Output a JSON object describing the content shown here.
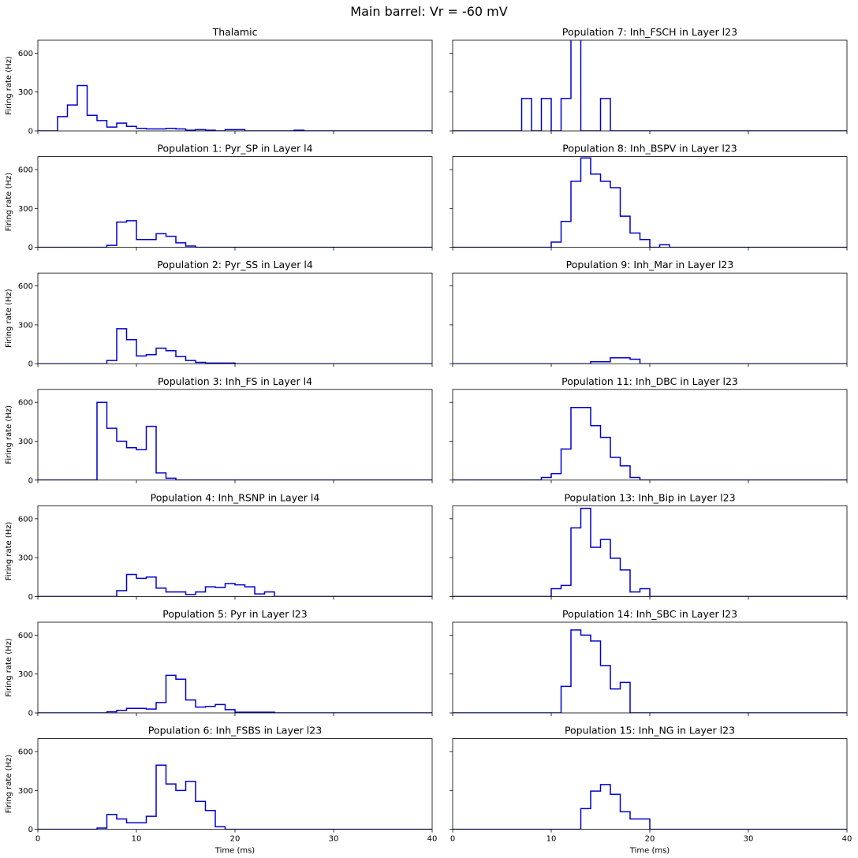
{
  "figure": {
    "title": "Main barrel: Vr = -60 mV",
    "series_color": "#0000cc"
  },
  "chart_data": [
    {
      "type": "line",
      "step": "post",
      "title": "Thalamic",
      "ylabel": "Firing rate (Hz)",
      "xlabel": "",
      "xlim": [
        0,
        40
      ],
      "ylim": [
        0,
        700
      ],
      "xticks": [
        "0",
        "10",
        "20",
        "30",
        "40"
      ],
      "yticks": [
        "0",
        "300",
        "600"
      ],
      "x": [
        0,
        1,
        2,
        3,
        4,
        5,
        6,
        7,
        8,
        9,
        10,
        11,
        12,
        13,
        14,
        15,
        16,
        17,
        18,
        19,
        20,
        21,
        22,
        23,
        24,
        25,
        26,
        27,
        28,
        29,
        30,
        31,
        32,
        33,
        34,
        35,
        36,
        37,
        38,
        39
      ],
      "y": [
        0,
        0,
        110,
        200,
        350,
        120,
        80,
        30,
        60,
        35,
        20,
        15,
        15,
        20,
        15,
        5,
        10,
        5,
        0,
        10,
        10,
        0,
        0,
        0,
        0,
        0,
        5,
        0,
        0,
        0,
        0,
        0,
        0,
        0,
        0,
        0,
        0,
        0,
        0,
        0
      ]
    },
    {
      "type": "line",
      "step": "post",
      "title": "Population 7: Inh_FSCH in Layer l23",
      "ylabel": "",
      "xlabel": "",
      "xlim": [
        0,
        40
      ],
      "ylim": [
        0,
        700
      ],
      "xticks": [
        "0",
        "10",
        "20",
        "30",
        "40"
      ],
      "yticks": [
        "0",
        "300",
        "600"
      ],
      "x": [
        0,
        1,
        2,
        3,
        4,
        5,
        6,
        7,
        8,
        9,
        10,
        11,
        12,
        13,
        14,
        15,
        16,
        17,
        18,
        19,
        20,
        21,
        22,
        23,
        24,
        25,
        26,
        27,
        28,
        29,
        30,
        31,
        32,
        33,
        34,
        35,
        36,
        37,
        38,
        39
      ],
      "y": [
        0,
        0,
        0,
        0,
        0,
        0,
        0,
        250,
        0,
        250,
        0,
        250,
        1000,
        0,
        0,
        250,
        0,
        0,
        0,
        0,
        0,
        0,
        0,
        0,
        0,
        0,
        0,
        0,
        0,
        0,
        0,
        0,
        0,
        0,
        0,
        0,
        0,
        0,
        0,
        0
      ]
    },
    {
      "type": "line",
      "step": "post",
      "title": "Population 1: Pyr_SP in Layer l4",
      "ylabel": "Firing rate (Hz)",
      "xlabel": "",
      "xlim": [
        0,
        40
      ],
      "ylim": [
        0,
        700
      ],
      "xticks": [
        "0",
        "10",
        "20",
        "30",
        "40"
      ],
      "yticks": [
        "0",
        "300",
        "600"
      ],
      "x": [
        0,
        1,
        2,
        3,
        4,
        5,
        6,
        7,
        8,
        9,
        10,
        11,
        12,
        13,
        14,
        15,
        16,
        17,
        18,
        19,
        20,
        21,
        22,
        23,
        24,
        25,
        26,
        27,
        28,
        29,
        30,
        31,
        32,
        33,
        34,
        35,
        36,
        37,
        38,
        39
      ],
      "y": [
        0,
        0,
        0,
        0,
        0,
        0,
        0,
        15,
        195,
        205,
        60,
        60,
        105,
        85,
        35,
        10,
        0,
        0,
        0,
        0,
        0,
        0,
        0,
        0,
        0,
        0,
        0,
        0,
        0,
        0,
        0,
        0,
        0,
        0,
        0,
        0,
        0,
        0,
        0,
        0
      ]
    },
    {
      "type": "line",
      "step": "post",
      "title": "Population 8: Inh_BSPV in Layer l23",
      "ylabel": "",
      "xlabel": "",
      "xlim": [
        0,
        40
      ],
      "ylim": [
        0,
        700
      ],
      "xticks": [
        "0",
        "10",
        "20",
        "30",
        "40"
      ],
      "yticks": [
        "0",
        "300",
        "600"
      ],
      "x": [
        0,
        1,
        2,
        3,
        4,
        5,
        6,
        7,
        8,
        9,
        10,
        11,
        12,
        13,
        14,
        15,
        16,
        17,
        18,
        19,
        20,
        21,
        22,
        23,
        24,
        25,
        26,
        27,
        28,
        29,
        30,
        31,
        32,
        33,
        34,
        35,
        36,
        37,
        38,
        39
      ],
      "y": [
        0,
        0,
        0,
        0,
        0,
        0,
        0,
        0,
        0,
        0,
        40,
        200,
        510,
        690,
        565,
        510,
        460,
        240,
        110,
        60,
        0,
        20,
        0,
        0,
        0,
        0,
        0,
        0,
        0,
        0,
        0,
        0,
        0,
        0,
        0,
        0,
        0,
        0,
        0,
        0
      ]
    },
    {
      "type": "line",
      "step": "post",
      "title": "Population 2: Pyr_SS in Layer l4",
      "ylabel": "Firing rate (Hz)",
      "xlabel": "",
      "xlim": [
        0,
        40
      ],
      "ylim": [
        0,
        700
      ],
      "xticks": [
        "0",
        "10",
        "20",
        "30",
        "40"
      ],
      "yticks": [
        "0",
        "300",
        "600"
      ],
      "x": [
        0,
        1,
        2,
        3,
        4,
        5,
        6,
        7,
        8,
        9,
        10,
        11,
        12,
        13,
        14,
        15,
        16,
        17,
        18,
        19,
        20,
        21,
        22,
        23,
        24,
        25,
        26,
        27,
        28,
        29,
        30,
        31,
        32,
        33,
        34,
        35,
        36,
        37,
        38,
        39
      ],
      "y": [
        0,
        0,
        0,
        0,
        0,
        0,
        0,
        25,
        270,
        185,
        60,
        70,
        120,
        100,
        55,
        25,
        10,
        5,
        5,
        5,
        0,
        0,
        0,
        0,
        0,
        0,
        0,
        0,
        0,
        0,
        0,
        0,
        0,
        0,
        0,
        0,
        0,
        0,
        0,
        0
      ]
    },
    {
      "type": "line",
      "step": "post",
      "title": "Population 9: Inh_Mar in Layer l23",
      "ylabel": "",
      "xlabel": "",
      "xlim": [
        0,
        40
      ],
      "ylim": [
        0,
        700
      ],
      "xticks": [
        "0",
        "10",
        "20",
        "30",
        "40"
      ],
      "yticks": [
        "0",
        "300",
        "600"
      ],
      "x": [
        0,
        1,
        2,
        3,
        4,
        5,
        6,
        7,
        8,
        9,
        10,
        11,
        12,
        13,
        14,
        15,
        16,
        17,
        18,
        19,
        20,
        21,
        22,
        23,
        24,
        25,
        26,
        27,
        28,
        29,
        30,
        31,
        32,
        33,
        34,
        35,
        36,
        37,
        38,
        39
      ],
      "y": [
        0,
        0,
        0,
        0,
        0,
        0,
        0,
        0,
        0,
        0,
        0,
        0,
        0,
        0,
        15,
        15,
        45,
        45,
        35,
        0,
        0,
        0,
        0,
        0,
        0,
        0,
        0,
        0,
        0,
        0,
        0,
        0,
        0,
        0,
        0,
        0,
        0,
        0,
        0,
        0
      ]
    },
    {
      "type": "line",
      "step": "post",
      "title": "Population 3: Inh_FS in Layer l4",
      "ylabel": "Firing rate (Hz)",
      "xlabel": "",
      "xlim": [
        0,
        40
      ],
      "ylim": [
        0,
        700
      ],
      "xticks": [
        "0",
        "10",
        "20",
        "30",
        "40"
      ],
      "yticks": [
        "0",
        "300",
        "600"
      ],
      "x": [
        0,
        1,
        2,
        3,
        4,
        5,
        6,
        7,
        8,
        9,
        10,
        11,
        12,
        13,
        14,
        15,
        16,
        17,
        18,
        19,
        20,
        21,
        22,
        23,
        24,
        25,
        26,
        27,
        28,
        29,
        30,
        31,
        32,
        33,
        34,
        35,
        36,
        37,
        38,
        39
      ],
      "y": [
        0,
        0,
        0,
        0,
        0,
        0,
        600,
        400,
        300,
        250,
        235,
        415,
        55,
        15,
        0,
        0,
        0,
        0,
        0,
        0,
        0,
        0,
        0,
        0,
        0,
        0,
        0,
        0,
        0,
        0,
        0,
        0,
        0,
        0,
        0,
        0,
        0,
        0,
        0,
        0
      ]
    },
    {
      "type": "line",
      "step": "post",
      "title": "Population 11: Inh_DBC in Layer l23",
      "ylabel": "",
      "xlabel": "",
      "xlim": [
        0,
        40
      ],
      "ylim": [
        0,
        700
      ],
      "xticks": [
        "0",
        "10",
        "20",
        "30",
        "40"
      ],
      "yticks": [
        "0",
        "300",
        "600"
      ],
      "x": [
        0,
        1,
        2,
        3,
        4,
        5,
        6,
        7,
        8,
        9,
        10,
        11,
        12,
        13,
        14,
        15,
        16,
        17,
        18,
        19,
        20,
        21,
        22,
        23,
        24,
        25,
        26,
        27,
        28,
        29,
        30,
        31,
        32,
        33,
        34,
        35,
        36,
        37,
        38,
        39
      ],
      "y": [
        0,
        0,
        0,
        0,
        0,
        0,
        0,
        0,
        0,
        20,
        50,
        240,
        560,
        560,
        420,
        330,
        175,
        110,
        20,
        0,
        0,
        0,
        0,
        0,
        0,
        0,
        0,
        0,
        0,
        0,
        0,
        0,
        0,
        0,
        0,
        0,
        0,
        0,
        0,
        0
      ]
    },
    {
      "type": "line",
      "step": "post",
      "title": "Population 4: Inh_RSNP in Layer l4",
      "ylabel": "Firing rate (Hz)",
      "xlabel": "",
      "xlim": [
        0,
        40
      ],
      "ylim": [
        0,
        700
      ],
      "xticks": [
        "0",
        "10",
        "20",
        "30",
        "40"
      ],
      "yticks": [
        "0",
        "300",
        "600"
      ],
      "x": [
        0,
        1,
        2,
        3,
        4,
        5,
        6,
        7,
        8,
        9,
        10,
        11,
        12,
        13,
        14,
        15,
        16,
        17,
        18,
        19,
        20,
        21,
        22,
        23,
        24,
        25,
        26,
        27,
        28,
        29,
        30,
        31,
        32,
        33,
        34,
        35,
        36,
        37,
        38,
        39
      ],
      "y": [
        0,
        0,
        0,
        0,
        0,
        0,
        0,
        0,
        45,
        170,
        140,
        150,
        65,
        35,
        35,
        15,
        35,
        75,
        70,
        100,
        90,
        75,
        20,
        35,
        0,
        0,
        0,
        0,
        0,
        0,
        0,
        0,
        0,
        0,
        0,
        0,
        0,
        0,
        0,
        0
      ]
    },
    {
      "type": "line",
      "step": "post",
      "title": "Population 13: Inh_Bip in Layer l23",
      "ylabel": "",
      "xlabel": "",
      "xlim": [
        0,
        40
      ],
      "ylim": [
        0,
        700
      ],
      "xticks": [
        "0",
        "10",
        "20",
        "30",
        "40"
      ],
      "yticks": [
        "0",
        "300",
        "600"
      ],
      "x": [
        0,
        1,
        2,
        3,
        4,
        5,
        6,
        7,
        8,
        9,
        10,
        11,
        12,
        13,
        14,
        15,
        16,
        17,
        18,
        19,
        20,
        21,
        22,
        23,
        24,
        25,
        26,
        27,
        28,
        29,
        30,
        31,
        32,
        33,
        34,
        35,
        36,
        37,
        38,
        39
      ],
      "y": [
        0,
        0,
        0,
        0,
        0,
        0,
        0,
        0,
        0,
        0,
        60,
        85,
        530,
        680,
        380,
        440,
        295,
        205,
        35,
        60,
        0,
        0,
        0,
        0,
        0,
        0,
        0,
        0,
        0,
        0,
        0,
        0,
        0,
        0,
        0,
        0,
        0,
        0,
        0,
        0
      ]
    },
    {
      "type": "line",
      "step": "post",
      "title": "Population 5: Pyr in Layer l23",
      "ylabel": "Firing rate (Hz)",
      "xlabel": "",
      "xlim": [
        0,
        40
      ],
      "ylim": [
        0,
        700
      ],
      "xticks": [
        "0",
        "10",
        "20",
        "30",
        "40"
      ],
      "yticks": [
        "0",
        "300",
        "600"
      ],
      "x": [
        0,
        1,
        2,
        3,
        4,
        5,
        6,
        7,
        8,
        9,
        10,
        11,
        12,
        13,
        14,
        15,
        16,
        17,
        18,
        19,
        20,
        21,
        22,
        23,
        24,
        25,
        26,
        27,
        28,
        29,
        30,
        31,
        32,
        33,
        34,
        35,
        36,
        37,
        38,
        39
      ],
      "y": [
        0,
        0,
        0,
        0,
        0,
        0,
        0,
        8,
        20,
        35,
        35,
        30,
        80,
        290,
        260,
        100,
        45,
        50,
        65,
        25,
        5,
        5,
        5,
        5,
        0,
        0,
        0,
        0,
        0,
        0,
        0,
        0,
        0,
        0,
        0,
        0,
        0,
        0,
        0,
        0
      ]
    },
    {
      "type": "line",
      "step": "post",
      "title": "Population 14: Inh_SBC in Layer l23",
      "ylabel": "",
      "xlabel": "",
      "xlim": [
        0,
        40
      ],
      "ylim": [
        0,
        700
      ],
      "xticks": [
        "0",
        "10",
        "20",
        "30",
        "40"
      ],
      "yticks": [
        "0",
        "300",
        "600"
      ],
      "x": [
        0,
        1,
        2,
        3,
        4,
        5,
        6,
        7,
        8,
        9,
        10,
        11,
        12,
        13,
        14,
        15,
        16,
        17,
        18,
        19,
        20,
        21,
        22,
        23,
        24,
        25,
        26,
        27,
        28,
        29,
        30,
        31,
        32,
        33,
        34,
        35,
        36,
        37,
        38,
        39
      ],
      "y": [
        0,
        0,
        0,
        0,
        0,
        0,
        0,
        0,
        0,
        0,
        0,
        205,
        640,
        600,
        555,
        365,
        185,
        235,
        0,
        0,
        0,
        0,
        0,
        0,
        0,
        0,
        0,
        0,
        0,
        0,
        0,
        0,
        0,
        0,
        0,
        0,
        0,
        0,
        0,
        0
      ]
    },
    {
      "type": "line",
      "step": "post",
      "title": "Population 6: Inh_FSBS in Layer l23",
      "ylabel": "Firing rate (Hz)",
      "xlabel": "Time (ms)",
      "xlim": [
        0,
        40
      ],
      "ylim": [
        0,
        700
      ],
      "xticks": [
        "0",
        "10",
        "20",
        "30",
        "40"
      ],
      "yticks": [
        "0",
        "300",
        "600"
      ],
      "x": [
        0,
        1,
        2,
        3,
        4,
        5,
        6,
        7,
        8,
        9,
        10,
        11,
        12,
        13,
        14,
        15,
        16,
        17,
        18,
        19,
        20,
        21,
        22,
        23,
        24,
        25,
        26,
        27,
        28,
        29,
        30,
        31,
        32,
        33,
        34,
        35,
        36,
        37,
        38,
        39
      ],
      "y": [
        0,
        0,
        0,
        0,
        0,
        0,
        10,
        115,
        80,
        50,
        50,
        100,
        495,
        350,
        300,
        370,
        215,
        145,
        20,
        0,
        0,
        0,
        0,
        0,
        0,
        0,
        0,
        0,
        0,
        0,
        0,
        0,
        0,
        0,
        0,
        0,
        0,
        0,
        0,
        0
      ]
    },
    {
      "type": "line",
      "step": "post",
      "title": "Population 15: Inh_NG in Layer l23",
      "ylabel": "",
      "xlabel": "Time (ms)",
      "xlim": [
        0,
        40
      ],
      "ylim": [
        0,
        700
      ],
      "xticks": [
        "0",
        "10",
        "20",
        "30",
        "40"
      ],
      "yticks": [
        "0",
        "300",
        "600"
      ],
      "x": [
        0,
        1,
        2,
        3,
        4,
        5,
        6,
        7,
        8,
        9,
        10,
        11,
        12,
        13,
        14,
        15,
        16,
        17,
        18,
        19,
        20,
        21,
        22,
        23,
        24,
        25,
        26,
        27,
        28,
        29,
        30,
        31,
        32,
        33,
        34,
        35,
        36,
        37,
        38,
        39
      ],
      "y": [
        0,
        0,
        0,
        0,
        0,
        0,
        0,
        0,
        0,
        0,
        0,
        0,
        0,
        160,
        295,
        345,
        270,
        135,
        80,
        80,
        0,
        0,
        0,
        0,
        0,
        0,
        0,
        0,
        0,
        0,
        0,
        0,
        0,
        0,
        0,
        0,
        0,
        0,
        0,
        0
      ]
    }
  ]
}
